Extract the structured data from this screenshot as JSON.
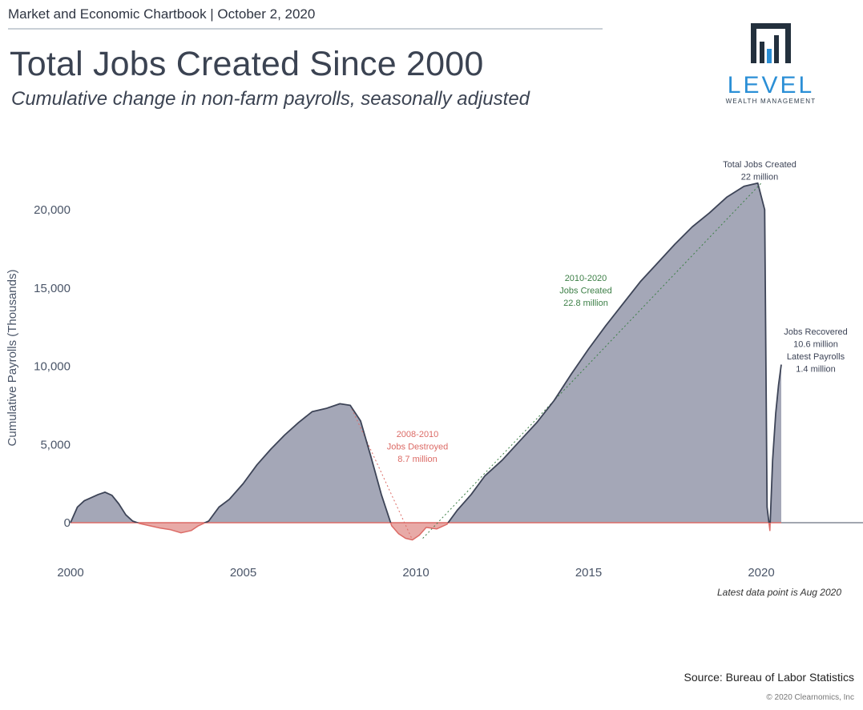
{
  "header": {
    "chartbook_line": "Market and Economic Chartbook | October 2, 2020",
    "title": "Total Jobs Created Since 2000",
    "subtitle": "Cumulative change in non-farm payrolls, seasonally adjusted"
  },
  "logo": {
    "name": "LEVEL",
    "tagline": "WEALTH MANAGEMENT",
    "brand_color": "#2b8fd6",
    "dark_color": "#23303d"
  },
  "footer": {
    "source": "Source: Bureau of Labor Statistics",
    "copyright": "© 2020 Clearnomics, Inc"
  },
  "colors": {
    "area": "#a4a7b7",
    "line": "#3d4457",
    "negative": "#dc6b66",
    "negative_fill": "#e8aaa7",
    "green": "#3c7f46"
  },
  "chart_data": {
    "type": "area",
    "title": "Total Jobs Created Since 2000",
    "xlabel": "",
    "ylabel": "Cumulative Payrolls (Thousands)",
    "xlim": [
      2000,
      2023
    ],
    "ylim": [
      -2300,
      23000
    ],
    "x_ticks": [
      2000,
      2005,
      2010,
      2015,
      2020
    ],
    "x_tick_labels": [
      "2000",
      "2005",
      "2010",
      "2015",
      "2020"
    ],
    "y_ticks": [
      0,
      5000,
      10000,
      15000,
      20000
    ],
    "y_tick_labels": [
      "0",
      "5,000",
      "10,000",
      "15,000",
      "20,000"
    ],
    "series": [
      {
        "name": "Cumulative change in non-farm payrolls",
        "x": [
          2000.0,
          2000.2,
          2000.4,
          2000.6,
          2000.8,
          2001.0,
          2001.2,
          2001.4,
          2001.6,
          2001.8,
          2002.0,
          2002.3,
          2002.6,
          2002.9,
          2003.2,
          2003.5,
          2003.7,
          2004.0,
          2004.3,
          2004.6,
          2005.0,
          2005.4,
          2005.8,
          2006.2,
          2006.6,
          2007.0,
          2007.4,
          2007.8,
          2008.1,
          2008.4,
          2008.7,
          2009.0,
          2009.3,
          2009.5,
          2009.7,
          2009.9,
          2010.1,
          2010.3,
          2010.6,
          2010.9,
          2011.2,
          2011.6,
          2012.0,
          2012.5,
          2013.0,
          2013.5,
          2014.0,
          2014.5,
          2015.0,
          2015.5,
          2016.0,
          2016.5,
          2017.0,
          2017.5,
          2018.0,
          2018.5,
          2019.0,
          2019.5,
          2019.9,
          2020.1,
          2020.17,
          2020.25,
          2020.33,
          2020.42,
          2020.5,
          2020.58
        ],
        "values": [
          0,
          1000,
          1400,
          1600,
          1800,
          1950,
          1750,
          1200,
          500,
          100,
          -50,
          -200,
          -350,
          -450,
          -650,
          -500,
          -200,
          100,
          1000,
          1500,
          2500,
          3700,
          4700,
          5600,
          6400,
          7100,
          7300,
          7600,
          7500,
          6500,
          4200,
          1800,
          -200,
          -700,
          -1000,
          -1100,
          -800,
          -300,
          -400,
          -100,
          800,
          1800,
          3000,
          4000,
          5200,
          6400,
          7800,
          9500,
          11100,
          12600,
          14000,
          15400,
          16600,
          17800,
          18900,
          19800,
          20800,
          21500,
          21700,
          20000,
          1000,
          -500,
          4000,
          7000,
          8800,
          10100
        ]
      }
    ],
    "annotations": [
      {
        "text": [
          "Total Jobs Created",
          "22 million"
        ],
        "color": "line"
      },
      {
        "text": [
          "2010-2020",
          "Jobs Created",
          "22.8 million"
        ],
        "color": "green"
      },
      {
        "text": [
          "2008-2010",
          "Jobs Destroyed",
          "8.7 million"
        ],
        "color": "negative"
      },
      {
        "text": [
          "Jobs Recovered",
          "10.6 million",
          "Latest Payrolls",
          "1.4 million"
        ],
        "color": "line"
      }
    ],
    "note": "Latest data point is Aug 2020"
  }
}
